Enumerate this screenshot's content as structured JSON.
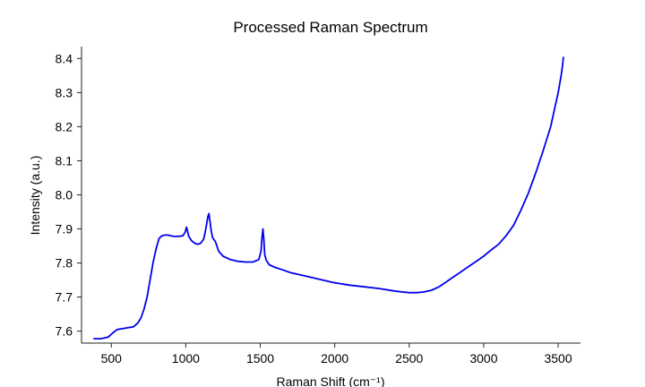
{
  "chart_data": {
    "type": "line",
    "title": "Processed Raman Spectrum",
    "xlabel": "Raman Shift (cm⁻¹)",
    "ylabel": "Intensity (a.u.)",
    "xlim": [
      300,
      3650
    ],
    "ylim": [
      7.565,
      8.435
    ],
    "xticks": [
      500,
      1000,
      1500,
      2000,
      2500,
      3000,
      3500
    ],
    "yticks": [
      7.6,
      7.7,
      7.8,
      7.9,
      8.0,
      8.1,
      8.2,
      8.3,
      8.4
    ],
    "grid": false,
    "series": [
      {
        "color": "#0000ee",
        "x": [
          380,
          430,
          480,
          510,
          540,
          570,
          610,
          650,
          680,
          700,
          720,
          740,
          760,
          780,
          800,
          820,
          840,
          860,
          880,
          900,
          920,
          950,
          980,
          995,
          1005,
          1012,
          1020,
          1040,
          1060,
          1080,
          1100,
          1120,
          1130,
          1140,
          1148,
          1155,
          1162,
          1170,
          1180,
          1190,
          1200,
          1220,
          1250,
          1300,
          1350,
          1400,
          1450,
          1490,
          1505,
          1512,
          1518,
          1524,
          1530,
          1540,
          1560,
          1600,
          1650,
          1700,
          1800,
          1900,
          2000,
          2100,
          2200,
          2300,
          2400,
          2450,
          2500,
          2550,
          2600,
          2650,
          2700,
          2750,
          2800,
          2850,
          2900,
          2950,
          3000,
          3050,
          3100,
          3150,
          3200,
          3250,
          3300,
          3350,
          3400,
          3450,
          3480,
          3500,
          3520,
          3530,
          3535
        ],
        "values": [
          7.578,
          7.578,
          7.583,
          7.595,
          7.605,
          7.607,
          7.61,
          7.613,
          7.625,
          7.64,
          7.665,
          7.7,
          7.75,
          7.8,
          7.84,
          7.872,
          7.88,
          7.882,
          7.882,
          7.88,
          7.878,
          7.878,
          7.88,
          7.89,
          7.905,
          7.893,
          7.878,
          7.865,
          7.858,
          7.855,
          7.858,
          7.87,
          7.89,
          7.915,
          7.935,
          7.945,
          7.925,
          7.895,
          7.875,
          7.868,
          7.862,
          7.835,
          7.82,
          7.81,
          7.805,
          7.803,
          7.803,
          7.81,
          7.835,
          7.875,
          7.9,
          7.87,
          7.825,
          7.808,
          7.795,
          7.787,
          7.78,
          7.772,
          7.762,
          7.752,
          7.742,
          7.735,
          7.73,
          7.725,
          7.718,
          7.715,
          7.713,
          7.713,
          7.715,
          7.72,
          7.73,
          7.745,
          7.76,
          7.775,
          7.79,
          7.805,
          7.82,
          7.838,
          7.855,
          7.88,
          7.91,
          7.955,
          8.005,
          8.065,
          8.13,
          8.2,
          8.26,
          8.3,
          8.35,
          8.38,
          8.405
        ]
      }
    ]
  }
}
